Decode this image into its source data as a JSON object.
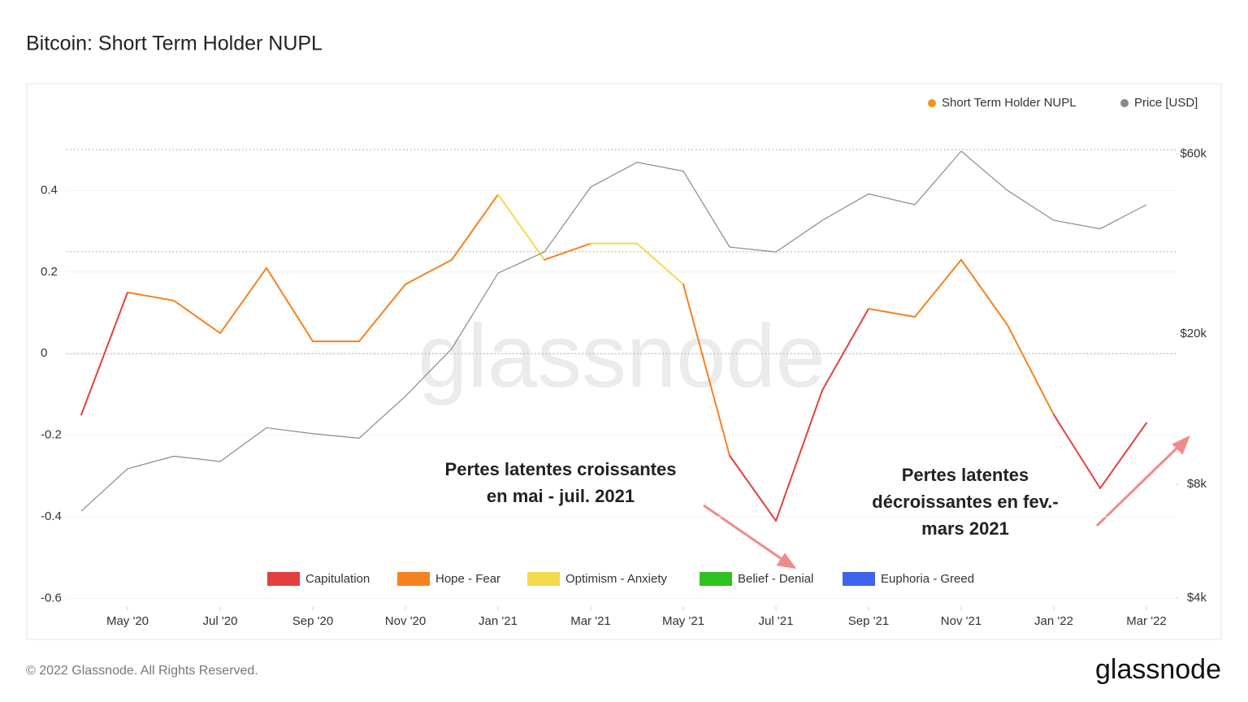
{
  "chart_data": {
    "type": "line",
    "title": "Bitcoin: Short Term Holder NUPL",
    "x": [
      "2020-04",
      "2020-05",
      "2020-06",
      "2020-07",
      "2020-08",
      "2020-09",
      "2020-10",
      "2020-11",
      "2020-12",
      "2021-01",
      "2021-02",
      "2021-03",
      "2021-04",
      "2021-05",
      "2021-06",
      "2021-07",
      "2021-08",
      "2021-09",
      "2021-10",
      "2021-11",
      "2021-12",
      "2022-01",
      "2022-02",
      "2022-03"
    ],
    "xlim": [
      "2020-03",
      "2022-04"
    ],
    "xticks": [
      {
        "value": "2020-05",
        "label": "May '20"
      },
      {
        "value": "2020-07",
        "label": "Jul '20"
      },
      {
        "value": "2020-09",
        "label": "Sep '20"
      },
      {
        "value": "2020-11",
        "label": "Nov '20"
      },
      {
        "value": "2021-01",
        "label": "Jan '21"
      },
      {
        "value": "2021-03",
        "label": "Mar '21"
      },
      {
        "value": "2021-05",
        "label": "May '21"
      },
      {
        "value": "2021-07",
        "label": "Jul '21"
      },
      {
        "value": "2021-09",
        "label": "Sep '21"
      },
      {
        "value": "2021-11",
        "label": "Nov '21"
      },
      {
        "value": "2022-01",
        "label": "Jan '22"
      },
      {
        "value": "2022-03",
        "label": "Mar '22"
      }
    ],
    "series": [
      {
        "name": "Short Term Holder NUPL",
        "color": "#f7931a",
        "values": [
          -0.15,
          0.15,
          0.13,
          0.05,
          0.21,
          0.03,
          0.03,
          0.17,
          0.23,
          0.39,
          0.23,
          0.27,
          0.27,
          0.17,
          -0.25,
          -0.41,
          -0.09,
          0.11,
          0.09,
          0.23,
          0.07,
          -0.15,
          -0.33,
          -0.17
        ],
        "colors": [
          "#e2403f",
          "#f58220",
          "#f58220",
          "#f58220",
          "#f58220",
          "#f58220",
          "#f58220",
          "#f58220",
          "#f58220",
          "#f5d94e",
          "#f58220",
          "#f5d94e",
          "#f5d94e",
          "#f58220",
          "#e2403f",
          "#e2403f",
          "#e2403f",
          "#f58220",
          "#f58220",
          "#f58220",
          "#f58220",
          "#e2403f",
          "#e2403f",
          "#e2403f"
        ]
      },
      {
        "name": "Price [USD]",
        "color": "#8a8a8a",
        "axis": "y2",
        "values": [
          6800,
          8800,
          9500,
          9200,
          11300,
          10900,
          10600,
          13700,
          18300,
          29000,
          33000,
          49000,
          57000,
          54000,
          34000,
          33000,
          40000,
          47000,
          44000,
          61000,
          48000,
          40000,
          38000,
          44000
        ]
      }
    ],
    "ylim": [
      -0.62,
      0.59
    ],
    "yticks": [
      -0.6,
      -0.4,
      -0.2,
      0,
      0.2,
      0.4
    ],
    "threshold_lines": [
      0,
      0.25,
      0.5
    ],
    "y2lim": [
      3800,
      77000
    ],
    "y2scale": "log",
    "y2ticks": [
      {
        "value": 4000,
        "label": "$4k"
      },
      {
        "value": 8000,
        "label": "$8k"
      },
      {
        "value": 20000,
        "label": "$20k"
      },
      {
        "value": 60000,
        "label": "$60k"
      }
    ],
    "legend": "top-right",
    "zones": [
      {
        "name": "Capitulation",
        "color": "#e2403f"
      },
      {
        "name": "Hope - Fear",
        "color": "#f58220"
      },
      {
        "name": "Optimism - Anxiety",
        "color": "#f5d94e"
      },
      {
        "name": "Belief - Denial",
        "color": "#2ec21f"
      },
      {
        "name": "Euphoria - Greed",
        "color": "#3f63ea"
      }
    ],
    "annotations": [
      {
        "lines": [
          "Pertes latentes croissantes",
          "en mai - juil. 2021"
        ]
      },
      {
        "lines": [
          "Pertes latentes",
          "décroissantes en fev.-",
          "mars 2021"
        ]
      }
    ],
    "watermark": "glassnode",
    "footer": "© 2022 Glassnode. All Rights Reserved.",
    "logo": "glassnode"
  }
}
